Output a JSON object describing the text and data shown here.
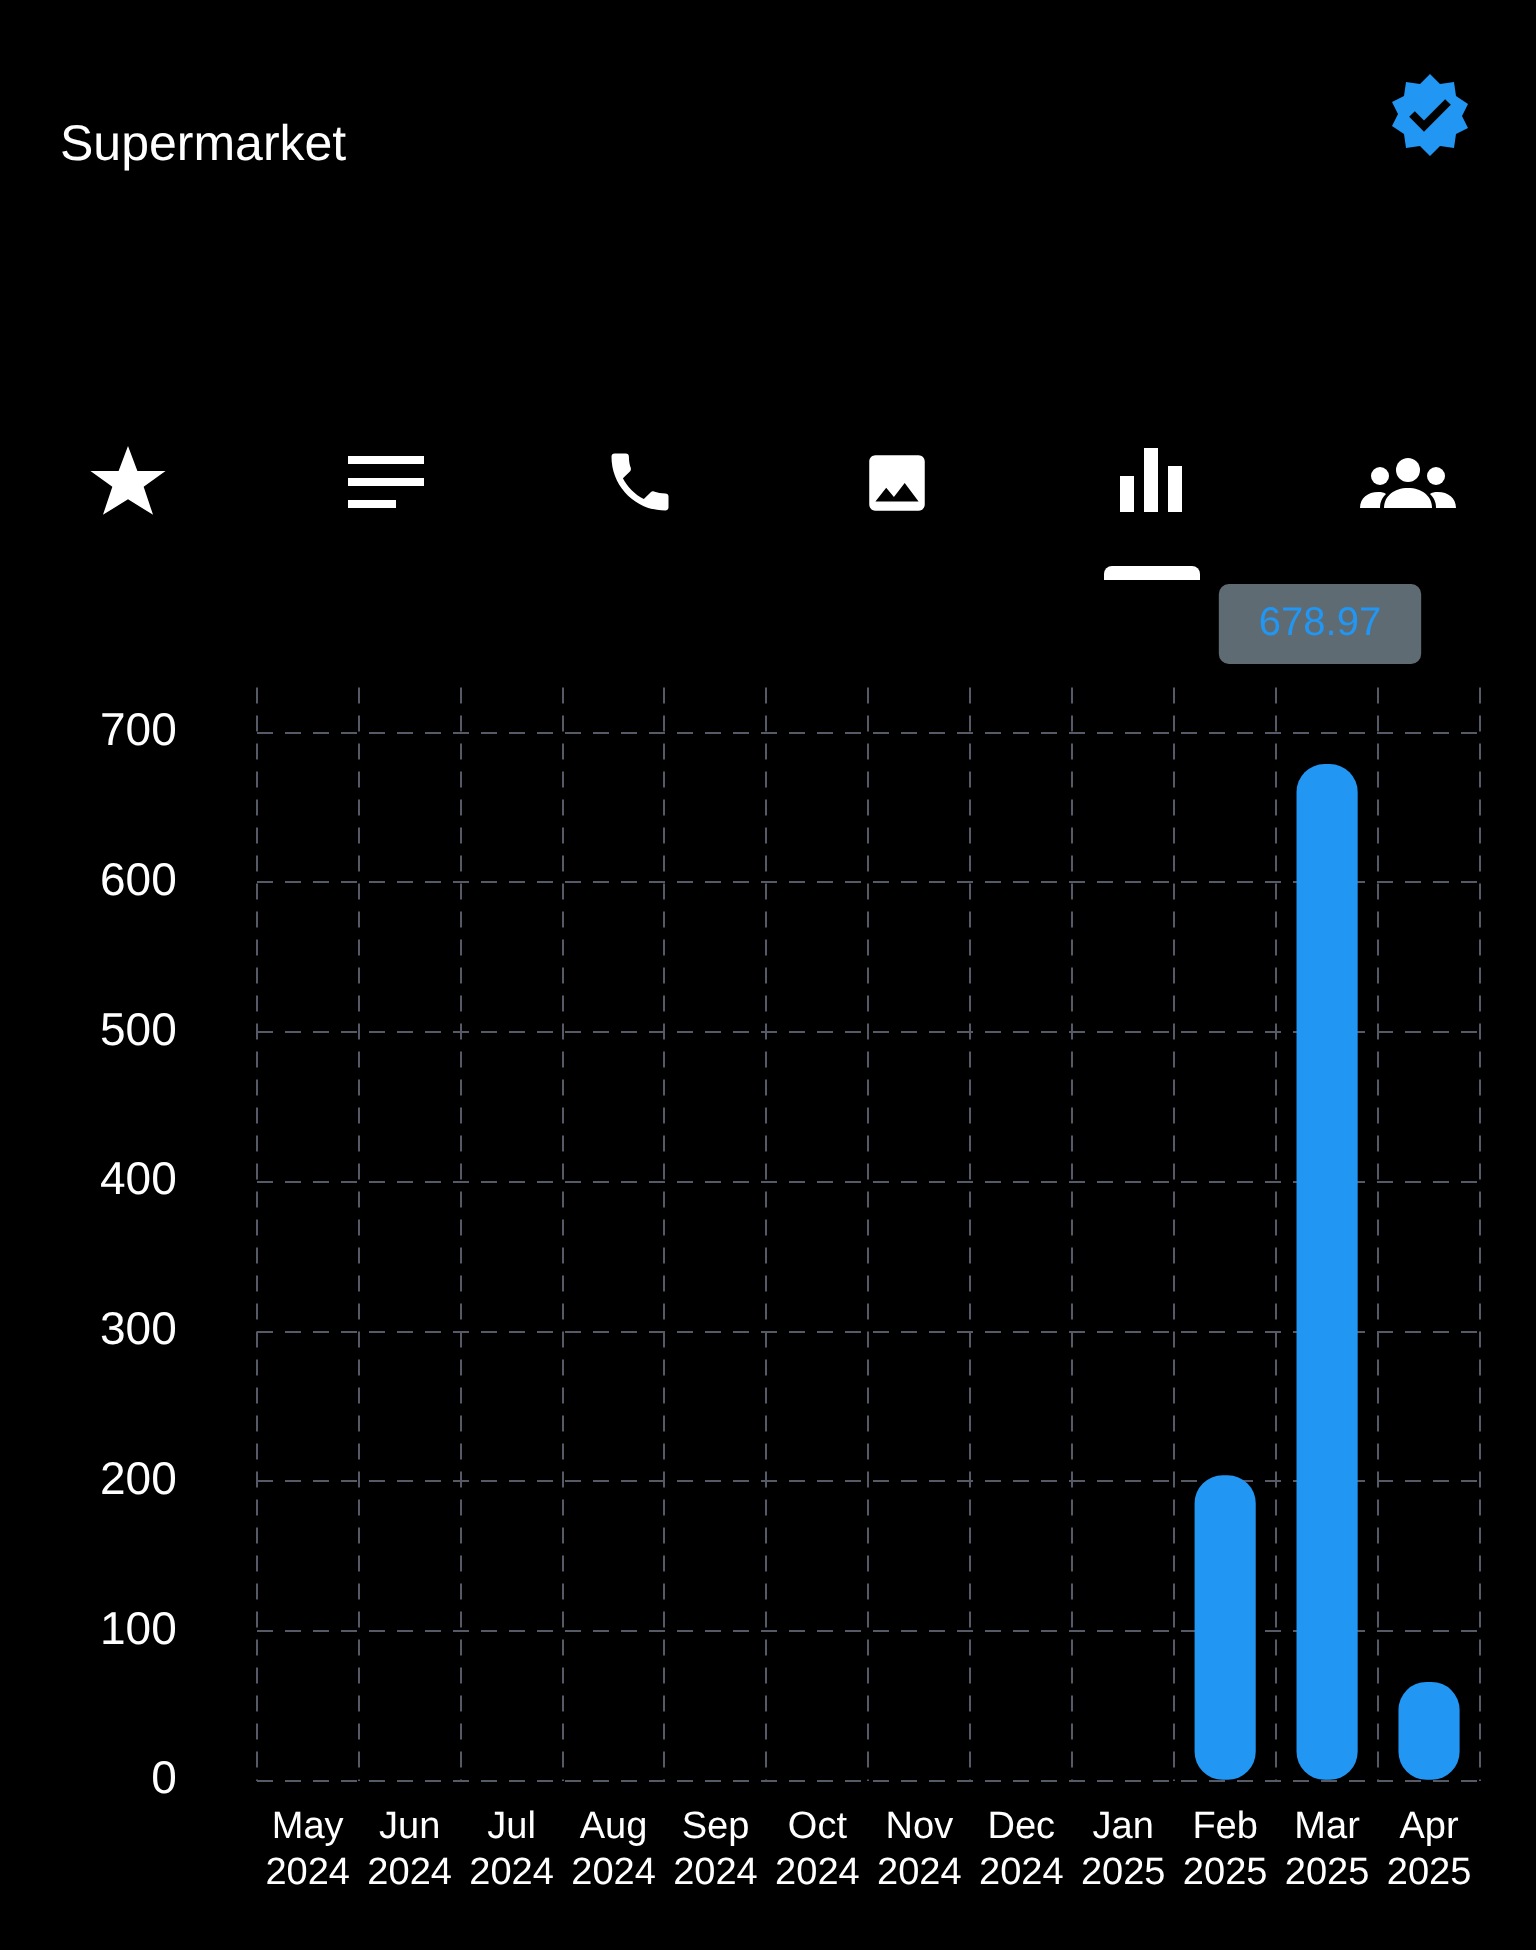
{
  "chart_data": {
    "type": "bar",
    "title": "Supermarket",
    "categories": [
      "May 2024",
      "Jun 2024",
      "Jul 2024",
      "Aug 2024",
      "Sep 2024",
      "Oct 2024",
      "Nov 2024",
      "Dec 2024",
      "Jan 2025",
      "Feb 2025",
      "Mar 2025",
      "Apr 2025"
    ],
    "values": [
      0,
      0,
      0,
      0,
      0,
      0,
      0,
      0,
      0,
      204,
      678.97,
      66
    ],
    "color": "#2196f3",
    "ylim": [
      0,
      730
    ],
    "yticks": [
      0,
      100,
      200,
      300,
      400,
      500,
      600,
      700
    ],
    "grid": true,
    "annotations": [
      "678.97"
    ]
  }
}
